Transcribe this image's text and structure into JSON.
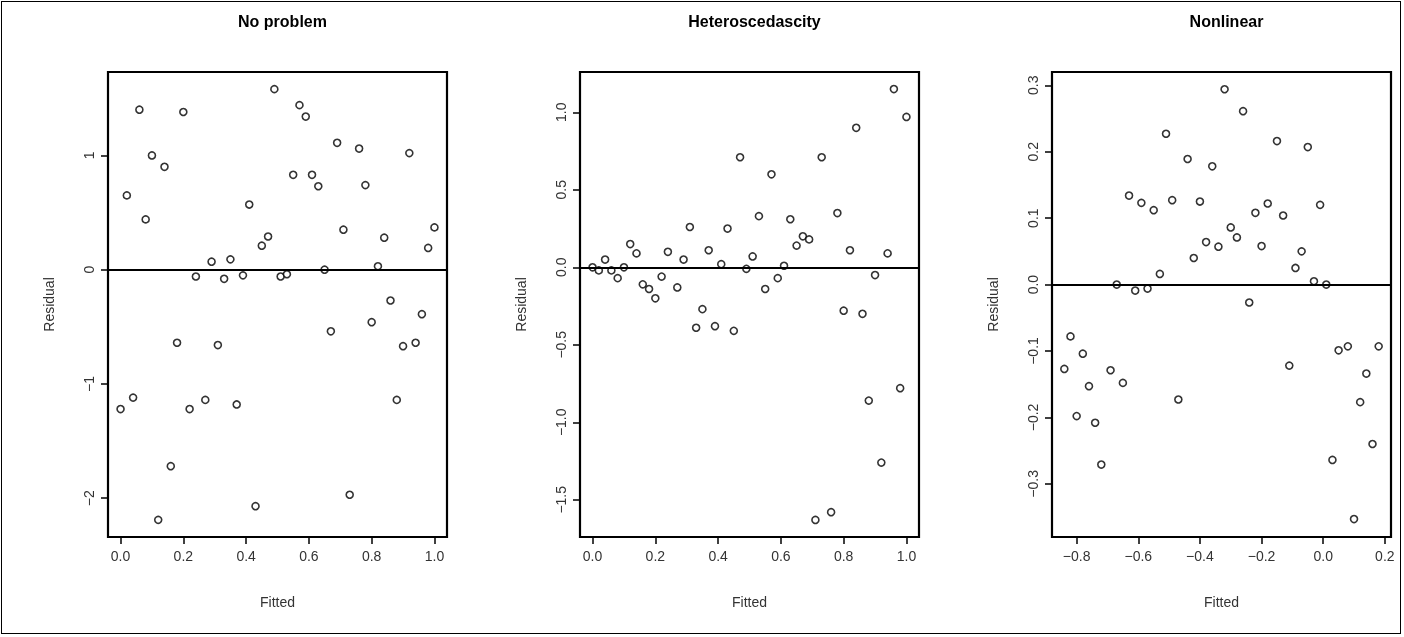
{
  "chart_data": [
    {
      "type": "scatter",
      "title": "No problem",
      "xlabel": "Fitted",
      "ylabel": "Residual",
      "marker": "circle",
      "grid": false,
      "xlim": [
        -0.04,
        1.04
      ],
      "ylim": [
        -2.34,
        1.73
      ],
      "xticks": [
        {
          "value": 0,
          "label": "0.0"
        },
        0.2,
        0.4,
        0.6,
        0.8,
        {
          "value": 1,
          "label": "1.0"
        }
      ],
      "yticks": [
        {
          "value": -2,
          "label": "−2"
        },
        {
          "value": -1,
          "label": "−1"
        },
        0,
        1
      ],
      "ref_lines": [
        {
          "axis": "y",
          "value": 0,
          "color": "#000000",
          "line_style": "solid"
        }
      ],
      "series": [
        {
          "color": "#000000",
          "x": [
            0,
            0.02,
            0.04,
            0.06,
            0.08,
            0.1,
            0.12,
            0.14,
            0.16,
            0.18,
            0.2,
            0.22,
            0.24,
            0.27,
            0.29,
            0.31,
            0.33,
            0.35,
            0.37,
            0.39,
            0.41,
            0.43,
            0.45,
            0.47,
            0.49,
            0.51,
            0.53,
            0.55,
            0.57,
            0.59,
            0.61,
            0.63,
            0.65,
            0.67,
            0.69,
            0.71,
            0.73,
            0.76,
            0.78,
            0.8,
            0.82,
            0.84,
            0.86,
            0.88,
            0.9,
            0.92,
            0.94,
            0.96,
            0.98,
            1.0
          ],
          "values": [
            -1.22,
            0.65,
            -1.12,
            1.4,
            0.44,
            1.0,
            -2.19,
            0.9,
            -1.72,
            -0.64,
            1.38,
            -1.22,
            -0.06,
            -1.14,
            0.07,
            -0.66,
            -0.08,
            0.09,
            -1.18,
            -0.05,
            0.57,
            -2.07,
            0.21,
            0.29,
            1.58,
            -0.06,
            -0.04,
            0.83,
            1.44,
            1.34,
            0.83,
            0.73,
            0.0,
            -0.54,
            1.11,
            0.35,
            -1.97,
            1.06,
            0.74,
            -0.46,
            0.03,
            0.28,
            -0.27,
            -1.14,
            -0.67,
            1.02,
            -0.64,
            -0.39,
            0.19,
            0.37
          ]
        }
      ]
    },
    {
      "type": "scatter",
      "title": "Heteroscedascity",
      "xlabel": "Fitted",
      "ylabel": "Residual",
      "marker": "circle",
      "grid": false,
      "xlim": [
        -0.04,
        1.04
      ],
      "ylim": [
        -1.74,
        1.26
      ],
      "xticks": [
        {
          "value": 0,
          "label": "0.0"
        },
        0.2,
        0.4,
        0.6,
        0.8,
        {
          "value": 1,
          "label": "1.0"
        }
      ],
      "yticks": [
        {
          "value": -1.5,
          "label": "−1.5"
        },
        {
          "value": -1,
          "label": "−1.0"
        },
        {
          "value": -0.5,
          "label": "−0.5"
        },
        {
          "value": 0,
          "label": "0.0"
        },
        0.5,
        {
          "value": 1,
          "label": "1.0"
        }
      ],
      "ref_lines": [
        {
          "axis": "y",
          "value": 0,
          "color": "#000000",
          "line_style": "solid"
        }
      ],
      "series": [
        {
          "color": "#000000",
          "x": [
            0,
            0.02,
            0.04,
            0.06,
            0.08,
            0.1,
            0.12,
            0.14,
            0.16,
            0.18,
            0.2,
            0.22,
            0.24,
            0.27,
            0.29,
            0.31,
            0.33,
            0.35,
            0.37,
            0.39,
            0.41,
            0.43,
            0.45,
            0.47,
            0.49,
            0.51,
            0.53,
            0.55,
            0.57,
            0.59,
            0.61,
            0.63,
            0.65,
            0.67,
            0.69,
            0.71,
            0.73,
            0.76,
            0.78,
            0.8,
            0.82,
            0.84,
            0.86,
            0.88,
            0.9,
            0.92,
            0.94,
            0.96,
            0.98,
            1.0
          ],
          "values": [
            0.0,
            -0.02,
            0.05,
            -0.02,
            -0.07,
            0.0,
            0.15,
            0.09,
            -0.11,
            -0.14,
            -0.2,
            -0.06,
            0.1,
            -0.13,
            0.05,
            0.26,
            -0.39,
            -0.27,
            0.11,
            -0.38,
            0.02,
            0.25,
            -0.41,
            0.71,
            -0.01,
            0.07,
            0.33,
            -0.14,
            0.6,
            -0.07,
            0.01,
            0.31,
            0.14,
            0.2,
            0.18,
            -1.63,
            0.71,
            -1.58,
            0.35,
            -0.28,
            0.11,
            0.9,
            -0.3,
            -0.86,
            -0.05,
            -1.26,
            0.09,
            1.15,
            -0.78,
            0.97
          ]
        }
      ]
    },
    {
      "type": "scatter",
      "title": "Nonlinear",
      "xlabel": "Fitted",
      "ylabel": "Residual",
      "marker": "circle",
      "grid": false,
      "xlim": [
        -0.88,
        0.22
      ],
      "ylim": [
        -0.38,
        0.32
      ],
      "xticks": [
        {
          "value": -0.8,
          "label": "−0.8"
        },
        {
          "value": -0.6,
          "label": "−0.6"
        },
        {
          "value": -0.4,
          "label": "−0.4"
        },
        {
          "value": -0.2,
          "label": "−0.2"
        },
        {
          "value": 0,
          "label": "0.0"
        },
        0.2
      ],
      "yticks": [
        {
          "value": -0.3,
          "label": "−0.3"
        },
        {
          "value": -0.2,
          "label": "−0.2"
        },
        {
          "value": -0.1,
          "label": "−0.1"
        },
        {
          "value": 0,
          "label": "0.0"
        },
        0.1,
        0.2,
        0.3
      ],
      "ref_lines": [
        {
          "axis": "y",
          "value": 0,
          "color": "#000000",
          "line_style": "solid"
        }
      ],
      "series": [
        {
          "color": "#000000",
          "x": [
            -0.84,
            -0.82,
            -0.8,
            -0.78,
            -0.76,
            -0.74,
            -0.72,
            -0.69,
            -0.67,
            -0.65,
            -0.63,
            -0.61,
            -0.59,
            -0.57,
            -0.55,
            -0.53,
            -0.51,
            -0.49,
            -0.47,
            -0.44,
            -0.42,
            -0.4,
            -0.38,
            -0.36,
            -0.34,
            -0.32,
            -0.3,
            -0.28,
            -0.26,
            -0.24,
            -0.22,
            -0.2,
            -0.18,
            -0.15,
            -0.13,
            -0.11,
            -0.09,
            -0.07,
            -0.05,
            -0.03,
            -0.01,
            0.01,
            0.03,
            0.05,
            0.08,
            0.1,
            0.12,
            0.14,
            0.16,
            0.18
          ],
          "values": [
            -0.127,
            -0.078,
            -0.198,
            -0.104,
            -0.153,
            -0.208,
            -0.271,
            -0.129,
            0.0,
            -0.148,
            0.134,
            -0.009,
            0.123,
            -0.006,
            0.112,
            0.016,
            0.227,
            0.127,
            -0.173,
            0.189,
            0.04,
            0.125,
            0.064,
            0.178,
            0.057,
            0.294,
            0.086,
            0.071,
            0.261,
            -0.027,
            0.108,
            0.058,
            0.122,
            0.216,
            0.104,
            -0.122,
            0.025,
            0.05,
            0.207,
            0.005,
            0.12,
            0.0,
            -0.264,
            -0.099,
            -0.093,
            -0.353,
            -0.177,
            -0.134,
            -0.24,
            -0.093
          ]
        }
      ]
    }
  ]
}
